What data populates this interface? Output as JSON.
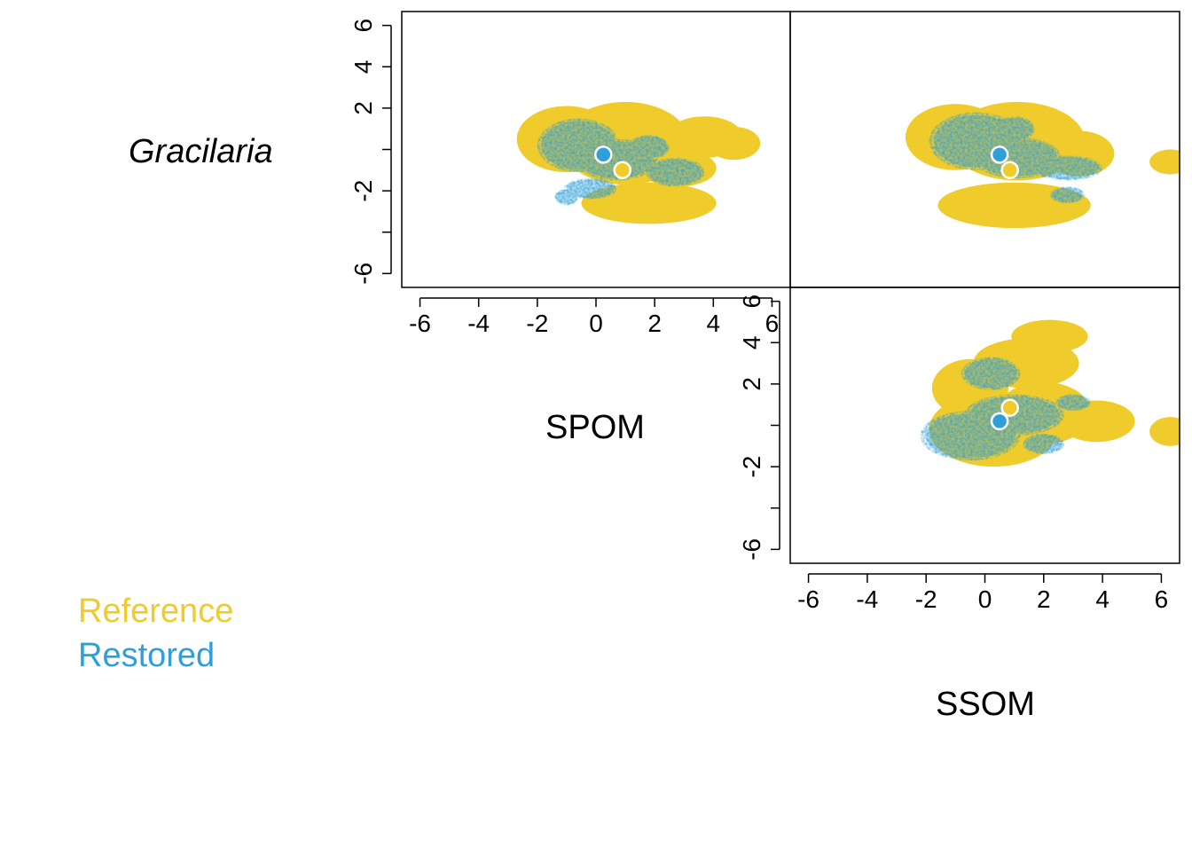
{
  "row_label": "Gracilaria",
  "legend": {
    "items": [
      {
        "label": "Reference",
        "color": "#EFCB2B"
      },
      {
        "label": "Restored",
        "color": "#2F9FDA"
      }
    ]
  },
  "colors": {
    "reference": "#EFCB2B",
    "restored": "#2F9FDA",
    "axis": "#000000",
    "centroid_stroke": "#ffffff"
  },
  "chart_data": [
    {
      "type": "scatter",
      "panel": "SPOM vs Gracilaria",
      "xlabel": "SPOM",
      "ylabel": "",
      "xlim": [
        -6.5,
        6.5
      ],
      "ylim": [
        -6.5,
        6.5
      ],
      "xticks": [
        -6,
        -4,
        -2,
        0,
        2,
        4,
        6
      ],
      "yticks": [
        -6,
        -4,
        -2,
        0,
        2,
        4,
        6
      ],
      "ytick_labels_shown": [
        "-6",
        "-2",
        "2",
        "4",
        "6"
      ],
      "grid": false,
      "series": [
        {
          "name": "Reference",
          "blobs": [
            {
              "cx": 1.0,
              "cy": 0.3,
              "rx": 2.2,
              "ry": 2.0
            },
            {
              "cx": -1.0,
              "cy": 0.5,
              "rx": 1.7,
              "ry": 1.6
            },
            {
              "cx": 3.7,
              "cy": 0.6,
              "rx": 1.3,
              "ry": 1.0
            },
            {
              "cx": 4.7,
              "cy": 0.3,
              "rx": 0.9,
              "ry": 0.8
            },
            {
              "cx": 1.8,
              "cy": -2.6,
              "rx": 2.3,
              "ry": 1.0
            },
            {
              "cx": 2.8,
              "cy": -0.9,
              "rx": 1.3,
              "ry": 0.9
            }
          ],
          "centroid": {
            "x": 0.9,
            "y": -1.0
          }
        },
        {
          "name": "Restored",
          "blobs": [
            {
              "cx": -0.6,
              "cy": 0.2,
              "rx": 1.4,
              "ry": 1.3
            },
            {
              "cx": 0.7,
              "cy": -0.5,
              "rx": 1.4,
              "ry": 1.0
            },
            {
              "cx": 1.8,
              "cy": 0.1,
              "rx": 0.7,
              "ry": 0.6
            },
            {
              "cx": 2.7,
              "cy": -1.1,
              "rx": 1.0,
              "ry": 0.7
            },
            {
              "cx": -1.0,
              "cy": -2.3,
              "rx": 0.4,
              "ry": 0.4
            },
            {
              "cx": -0.2,
              "cy": -1.9,
              "rx": 0.9,
              "ry": 0.5
            }
          ],
          "centroid": {
            "x": 0.25,
            "y": -0.25
          }
        }
      ]
    },
    {
      "type": "scatter",
      "panel": "SSOM vs Gracilaria",
      "xlabel": "",
      "ylabel": "",
      "xlim": [
        -6.5,
        6.5
      ],
      "ylim": [
        -6.5,
        6.5
      ],
      "grid": false,
      "series": [
        {
          "name": "Reference",
          "blobs": [
            {
              "cx": 1.1,
              "cy": 0.4,
              "rx": 2.3,
              "ry": 1.9
            },
            {
              "cx": -1.0,
              "cy": 0.6,
              "rx": 1.7,
              "ry": 1.6
            },
            {
              "cx": 1.0,
              "cy": -2.7,
              "rx": 2.6,
              "ry": 1.1
            },
            {
              "cx": 3.2,
              "cy": -0.2,
              "rx": 1.2,
              "ry": 1.1
            },
            {
              "cx": 6.3,
              "cy": -0.6,
              "rx": 0.7,
              "ry": 0.6
            }
          ],
          "centroid": {
            "x": 0.85,
            "y": -1.0
          }
        },
        {
          "name": "Restored",
          "blobs": [
            {
              "cx": -0.3,
              "cy": 0.4,
              "rx": 1.6,
              "ry": 1.4
            },
            {
              "cx": 1.1,
              "cy": -0.4,
              "rx": 1.5,
              "ry": 1.0
            },
            {
              "cx": 2.8,
              "cy": -0.9,
              "rx": 1.2,
              "ry": 0.6
            },
            {
              "cx": 2.8,
              "cy": -2.2,
              "rx": 0.6,
              "ry": 0.4
            },
            {
              "cx": 1.0,
              "cy": 1.0,
              "rx": 0.7,
              "ry": 0.6
            }
          ],
          "centroid": {
            "x": 0.5,
            "y": -0.25
          }
        }
      ]
    },
    {
      "type": "scatter",
      "panel": "SSOM vs SPOM",
      "xlabel": "SSOM",
      "ylabel": "",
      "xlim": [
        -6.5,
        6.5
      ],
      "ylim": [
        -6.5,
        6.5
      ],
      "xticks": [
        -6,
        -4,
        -2,
        0,
        2,
        4,
        6
      ],
      "yticks": [
        -6,
        -4,
        -2,
        0,
        2,
        4,
        6
      ],
      "ytick_labels_shown": [
        "-6",
        "-2",
        "2",
        "4",
        "6"
      ],
      "grid": false,
      "series": [
        {
          "name": "Reference",
          "blobs": [
            {
              "cx": 0.3,
              "cy": -0.2,
              "rx": 2.2,
              "ry": 1.8
            },
            {
              "cx": 2.0,
              "cy": 0.6,
              "rx": 1.6,
              "ry": 1.5
            },
            {
              "cx": 1.4,
              "cy": 3.0,
              "rx": 1.8,
              "ry": 1.2
            },
            {
              "cx": 2.2,
              "cy": 4.3,
              "rx": 1.3,
              "ry": 0.8
            },
            {
              "cx": 3.8,
              "cy": 0.2,
              "rx": 1.3,
              "ry": 1.0
            },
            {
              "cx": 6.3,
              "cy": -0.3,
              "rx": 0.7,
              "ry": 0.7
            },
            {
              "cx": -0.5,
              "cy": 1.8,
              "rx": 1.3,
              "ry": 1.4
            }
          ],
          "centroid": {
            "x": 0.85,
            "y": 0.85
          }
        },
        {
          "name": "Restored",
          "blobs": [
            {
              "cx": -0.5,
              "cy": -0.5,
              "rx": 1.7,
              "ry": 1.2
            },
            {
              "cx": 1.0,
              "cy": 0.5,
              "rx": 1.7,
              "ry": 1.0
            },
            {
              "cx": 0.2,
              "cy": 2.5,
              "rx": 1.0,
              "ry": 0.8
            },
            {
              "cx": 2.0,
              "cy": -0.9,
              "rx": 0.7,
              "ry": 0.5
            },
            {
              "cx": 3.0,
              "cy": 1.1,
              "rx": 0.6,
              "ry": 0.4
            }
          ],
          "centroid": {
            "x": 0.5,
            "y": 0.2
          }
        }
      ]
    }
  ]
}
